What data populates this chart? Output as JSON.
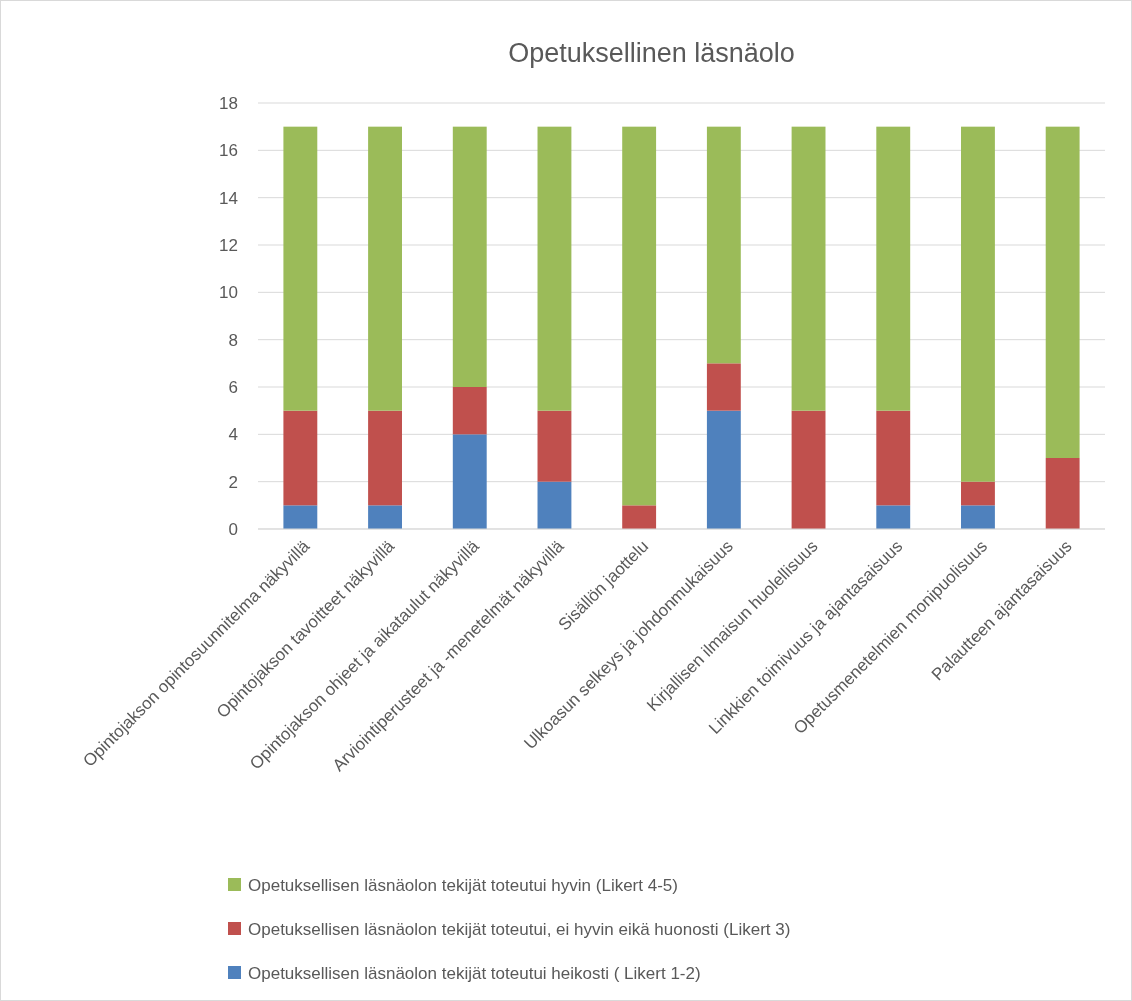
{
  "chart_data": {
    "type": "bar",
    "title": "Opetuksellinen läsnäolo",
    "stacked": true,
    "categories": [
      "Opintojakson opintosuunnitelma näkyvillä",
      "Opintojakson tavoitteet näkyvillä",
      "Opintojakson ohjeet ja aikataulut näkyvillä",
      "Arviointiperusteet ja -menetelmät näkyvillä",
      "Sisällön jaottelu",
      "Ulkoasun selkeys ja johdonmukaisuus",
      "Kirjallisen ilmaisun huolellisuus",
      "Linkkien toimivuus ja ajantasaisuus",
      "Opetusmenetelmien monipuolisuus",
      "Palautteen ajantasaisuus"
    ],
    "series": [
      {
        "name": "Opetuksellisen läsnäolon tekijät toteutui heikosti ( Likert 1-2)",
        "color": "#4f81bd",
        "values": [
          1,
          1,
          4,
          2,
          0,
          5,
          0,
          1,
          1,
          0
        ]
      },
      {
        "name": "Opetuksellisen läsnäolon tekijät toteutui, ei hyvin eikä huonosti (Likert 3)",
        "color": "#c0504d",
        "values": [
          4,
          4,
          2,
          3,
          1,
          2,
          5,
          4,
          1,
          3
        ]
      },
      {
        "name": "Opetuksellisen läsnäolon tekijät toteutui hyvin (Likert 4-5)",
        "color": "#9bbb59",
        "values": [
          12,
          12,
          11,
          12,
          16,
          10,
          12,
          12,
          15,
          14
        ]
      }
    ],
    "ylim": [
      0,
      18
    ],
    "yticks": [
      0,
      2,
      4,
      6,
      8,
      10,
      12,
      14,
      16,
      18
    ],
    "grid": "y",
    "legend": "bottom"
  }
}
